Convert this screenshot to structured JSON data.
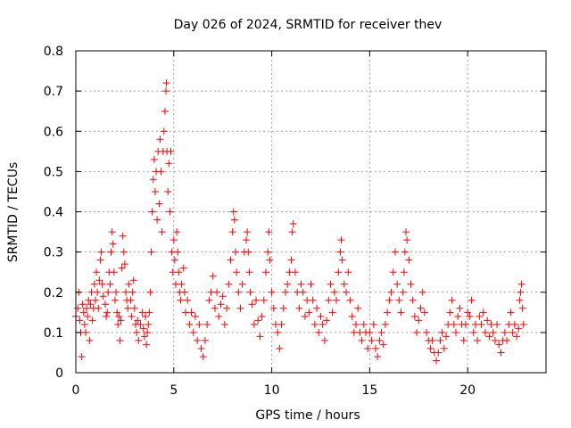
{
  "chart_data": {
    "type": "scatter",
    "title": "Day 026 of 2024, SRMTID for receiver thev",
    "xlabel": "GPS time / hours",
    "ylabel": "SRMTID / TECUs",
    "xlim": [
      0,
      24
    ],
    "ylim": [
      0,
      0.8
    ],
    "x_ticks": [
      "0",
      "5",
      "10",
      "15",
      "20"
    ],
    "y_ticks": [
      "0",
      "0.1",
      "0.2",
      "0.3",
      "0.4",
      "0.5",
      "0.6",
      "0.7",
      "0.8"
    ],
    "grid": true,
    "marker": "plus",
    "series_color": "#ff0000",
    "series": [
      {
        "name": "SRMTID",
        "points": [
          [
            0.0,
            0.14
          ],
          [
            0.1,
            0.16
          ],
          [
            0.15,
            0.2
          ],
          [
            0.2,
            0.13
          ],
          [
            0.25,
            0.1
          ],
          [
            0.3,
            0.04
          ],
          [
            0.35,
            0.17
          ],
          [
            0.4,
            0.15
          ],
          [
            0.45,
            0.12
          ],
          [
            0.5,
            0.1
          ],
          [
            0.55,
            0.16
          ],
          [
            0.6,
            0.14
          ],
          [
            0.65,
            0.18
          ],
          [
            0.7,
            0.08
          ],
          [
            0.75,
            0.17
          ],
          [
            0.8,
            0.2
          ],
          [
            0.85,
            0.13
          ],
          [
            0.9,
            0.16
          ],
          [
            0.95,
            0.22
          ],
          [
            1.0,
            0.18
          ],
          [
            1.05,
            0.25
          ],
          [
            1.1,
            0.2
          ],
          [
            1.15,
            0.16
          ],
          [
            1.2,
            0.23
          ],
          [
            1.25,
            0.28
          ],
          [
            1.3,
            0.3
          ],
          [
            1.35,
            0.22
          ],
          [
            1.4,
            0.19
          ],
          [
            1.5,
            0.17
          ],
          [
            1.55,
            0.14
          ],
          [
            1.6,
            0.15
          ],
          [
            1.65,
            0.2
          ],
          [
            1.7,
            0.25
          ],
          [
            1.75,
            0.22
          ],
          [
            1.8,
            0.3
          ],
          [
            1.85,
            0.35
          ],
          [
            1.9,
            0.32
          ],
          [
            1.95,
            0.25
          ],
          [
            2.0,
            0.18
          ],
          [
            2.05,
            0.2
          ],
          [
            2.1,
            0.15
          ],
          [
            2.15,
            0.12
          ],
          [
            2.2,
            0.14
          ],
          [
            2.25,
            0.08
          ],
          [
            2.3,
            0.13
          ],
          [
            2.35,
            0.26
          ],
          [
            2.4,
            0.34
          ],
          [
            2.45,
            0.3
          ],
          [
            2.5,
            0.27
          ],
          [
            2.55,
            0.2
          ],
          [
            2.6,
            0.18
          ],
          [
            2.65,
            0.16
          ],
          [
            2.7,
            0.22
          ],
          [
            2.8,
            0.18
          ],
          [
            2.85,
            0.14
          ],
          [
            2.9,
            0.2
          ],
          [
            2.95,
            0.23
          ],
          [
            3.0,
            0.16
          ],
          [
            3.05,
            0.12
          ],
          [
            3.1,
            0.1
          ],
          [
            3.15,
            0.13
          ],
          [
            3.2,
            0.08
          ],
          [
            3.3,
            0.12
          ],
          [
            3.4,
            0.15
          ],
          [
            3.45,
            0.11
          ],
          [
            3.5,
            0.09
          ],
          [
            3.55,
            0.14
          ],
          [
            3.6,
            0.07
          ],
          [
            3.65,
            0.1
          ],
          [
            3.7,
            0.12
          ],
          [
            3.75,
            0.15
          ],
          [
            3.8,
            0.2
          ],
          [
            3.85,
            0.3
          ],
          [
            3.9,
            0.4
          ],
          [
            3.95,
            0.48
          ],
          [
            4.0,
            0.53
          ],
          [
            4.05,
            0.45
          ],
          [
            4.1,
            0.5
          ],
          [
            4.15,
            0.38
          ],
          [
            4.2,
            0.55
          ],
          [
            4.25,
            0.42
          ],
          [
            4.3,
            0.58
          ],
          [
            4.35,
            0.5
          ],
          [
            4.4,
            0.35
          ],
          [
            4.45,
            0.55
          ],
          [
            4.5,
            0.6
          ],
          [
            4.55,
            0.65
          ],
          [
            4.6,
            0.7
          ],
          [
            4.62,
            0.72
          ],
          [
            4.65,
            0.55
          ],
          [
            4.7,
            0.45
          ],
          [
            4.75,
            0.52
          ],
          [
            4.8,
            0.4
          ],
          [
            4.85,
            0.55
          ],
          [
            4.9,
            0.3
          ],
          [
            4.95,
            0.25
          ],
          [
            5.0,
            0.33
          ],
          [
            5.05,
            0.28
          ],
          [
            5.1,
            0.22
          ],
          [
            5.15,
            0.35
          ],
          [
            5.2,
            0.3
          ],
          [
            5.25,
            0.25
          ],
          [
            5.3,
            0.2
          ],
          [
            5.35,
            0.18
          ],
          [
            5.4,
            0.22
          ],
          [
            5.5,
            0.26
          ],
          [
            5.55,
            0.2
          ],
          [
            5.6,
            0.15
          ],
          [
            5.7,
            0.18
          ],
          [
            5.8,
            0.12
          ],
          [
            5.9,
            0.15
          ],
          [
            6.0,
            0.1
          ],
          [
            6.1,
            0.14
          ],
          [
            6.2,
            0.08
          ],
          [
            6.3,
            0.12
          ],
          [
            6.4,
            0.06
          ],
          [
            6.5,
            0.04
          ],
          [
            6.6,
            0.08
          ],
          [
            6.7,
            0.12
          ],
          [
            6.8,
            0.18
          ],
          [
            6.9,
            0.2
          ],
          [
            7.0,
            0.24
          ],
          [
            7.1,
            0.16
          ],
          [
            7.2,
            0.2
          ],
          [
            7.3,
            0.14
          ],
          [
            7.4,
            0.17
          ],
          [
            7.5,
            0.19
          ],
          [
            7.6,
            0.12
          ],
          [
            7.7,
            0.16
          ],
          [
            7.8,
            0.22
          ],
          [
            7.9,
            0.28
          ],
          [
            8.0,
            0.35
          ],
          [
            8.05,
            0.4
          ],
          [
            8.1,
            0.38
          ],
          [
            8.15,
            0.3
          ],
          [
            8.2,
            0.25
          ],
          [
            8.3,
            0.2
          ],
          [
            8.4,
            0.16
          ],
          [
            8.5,
            0.22
          ],
          [
            8.6,
            0.3
          ],
          [
            8.7,
            0.33
          ],
          [
            8.75,
            0.35
          ],
          [
            8.8,
            0.3
          ],
          [
            8.85,
            0.25
          ],
          [
            8.9,
            0.2
          ],
          [
            9.0,
            0.17
          ],
          [
            9.1,
            0.12
          ],
          [
            9.2,
            0.18
          ],
          [
            9.3,
            0.13
          ],
          [
            9.4,
            0.09
          ],
          [
            9.5,
            0.14
          ],
          [
            9.6,
            0.18
          ],
          [
            9.7,
            0.25
          ],
          [
            9.8,
            0.3
          ],
          [
            9.85,
            0.35
          ],
          [
            9.9,
            0.28
          ],
          [
            10.0,
            0.2
          ],
          [
            10.1,
            0.16
          ],
          [
            10.2,
            0.12
          ],
          [
            10.3,
            0.1
          ],
          [
            10.4,
            0.06
          ],
          [
            10.5,
            0.12
          ],
          [
            10.6,
            0.16
          ],
          [
            10.7,
            0.2
          ],
          [
            10.8,
            0.22
          ],
          [
            10.9,
            0.25
          ],
          [
            11.0,
            0.28
          ],
          [
            11.05,
            0.35
          ],
          [
            11.1,
            0.37
          ],
          [
            11.2,
            0.25
          ],
          [
            11.3,
            0.2
          ],
          [
            11.4,
            0.16
          ],
          [
            11.5,
            0.22
          ],
          [
            11.6,
            0.2
          ],
          [
            11.7,
            0.14
          ],
          [
            11.8,
            0.18
          ],
          [
            11.9,
            0.15
          ],
          [
            12.0,
            0.22
          ],
          [
            12.1,
            0.18
          ],
          [
            12.2,
            0.12
          ],
          [
            12.3,
            0.16
          ],
          [
            12.4,
            0.1
          ],
          [
            12.5,
            0.14
          ],
          [
            12.6,
            0.12
          ],
          [
            12.7,
            0.08
          ],
          [
            12.8,
            0.13
          ],
          [
            12.9,
            0.18
          ],
          [
            13.0,
            0.22
          ],
          [
            13.1,
            0.15
          ],
          [
            13.2,
            0.2
          ],
          [
            13.3,
            0.18
          ],
          [
            13.4,
            0.25
          ],
          [
            13.5,
            0.3
          ],
          [
            13.55,
            0.33
          ],
          [
            13.6,
            0.28
          ],
          [
            13.7,
            0.22
          ],
          [
            13.8,
            0.2
          ],
          [
            13.9,
            0.25
          ],
          [
            14.0,
            0.18
          ],
          [
            14.1,
            0.14
          ],
          [
            14.2,
            0.1
          ],
          [
            14.3,
            0.12
          ],
          [
            14.4,
            0.16
          ],
          [
            14.5,
            0.1
          ],
          [
            14.6,
            0.08
          ],
          [
            14.7,
            0.12
          ],
          [
            14.8,
            0.1
          ],
          [
            14.9,
            0.06
          ],
          [
            15.0,
            0.1
          ],
          [
            15.1,
            0.08
          ],
          [
            15.2,
            0.12
          ],
          [
            15.3,
            0.06
          ],
          [
            15.4,
            0.04
          ],
          [
            15.5,
            0.08
          ],
          [
            15.6,
            0.1
          ],
          [
            15.7,
            0.07
          ],
          [
            15.8,
            0.12
          ],
          [
            15.9,
            0.15
          ],
          [
            16.0,
            0.18
          ],
          [
            16.1,
            0.2
          ],
          [
            16.2,
            0.25
          ],
          [
            16.3,
            0.3
          ],
          [
            16.4,
            0.22
          ],
          [
            16.5,
            0.18
          ],
          [
            16.6,
            0.15
          ],
          [
            16.7,
            0.2
          ],
          [
            16.75,
            0.25
          ],
          [
            16.8,
            0.3
          ],
          [
            16.85,
            0.35
          ],
          [
            16.9,
            0.33
          ],
          [
            17.0,
            0.28
          ],
          [
            17.1,
            0.22
          ],
          [
            17.2,
            0.18
          ],
          [
            17.3,
            0.14
          ],
          [
            17.4,
            0.1
          ],
          [
            17.5,
            0.13
          ],
          [
            17.6,
            0.16
          ],
          [
            17.7,
            0.2
          ],
          [
            17.8,
            0.15
          ],
          [
            17.9,
            0.1
          ],
          [
            18.0,
            0.08
          ],
          [
            18.1,
            0.06
          ],
          [
            18.2,
            0.08
          ],
          [
            18.3,
            0.05
          ],
          [
            18.4,
            0.03
          ],
          [
            18.5,
            0.05
          ],
          [
            18.6,
            0.08
          ],
          [
            18.7,
            0.1
          ],
          [
            18.8,
            0.06
          ],
          [
            18.9,
            0.09
          ],
          [
            19.0,
            0.12
          ],
          [
            19.1,
            0.15
          ],
          [
            19.2,
            0.18
          ],
          [
            19.3,
            0.12
          ],
          [
            19.4,
            0.1
          ],
          [
            19.5,
            0.14
          ],
          [
            19.6,
            0.16
          ],
          [
            19.7,
            0.12
          ],
          [
            19.8,
            0.08
          ],
          [
            19.9,
            0.12
          ],
          [
            20.0,
            0.15
          ],
          [
            20.1,
            0.14
          ],
          [
            20.2,
            0.18
          ],
          [
            20.3,
            0.1
          ],
          [
            20.4,
            0.12
          ],
          [
            20.5,
            0.08
          ],
          [
            20.6,
            0.14
          ],
          [
            20.7,
            0.12
          ],
          [
            20.8,
            0.15
          ],
          [
            20.9,
            0.1
          ],
          [
            21.0,
            0.13
          ],
          [
            21.1,
            0.09
          ],
          [
            21.2,
            0.12
          ],
          [
            21.3,
            0.1
          ],
          [
            21.4,
            0.08
          ],
          [
            21.5,
            0.12
          ],
          [
            21.6,
            0.07
          ],
          [
            21.7,
            0.05
          ],
          [
            21.8,
            0.08
          ],
          [
            21.9,
            0.1
          ],
          [
            22.0,
            0.08
          ],
          [
            22.1,
            0.12
          ],
          [
            22.2,
            0.15
          ],
          [
            22.3,
            0.1
          ],
          [
            22.4,
            0.12
          ],
          [
            22.5,
            0.09
          ],
          [
            22.6,
            0.11
          ],
          [
            22.65,
            0.18
          ],
          [
            22.7,
            0.2
          ],
          [
            22.75,
            0.22
          ],
          [
            22.8,
            0.16
          ],
          [
            22.85,
            0.12
          ]
        ]
      }
    ]
  }
}
